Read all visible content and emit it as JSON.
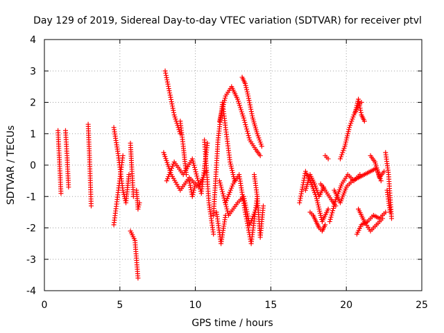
{
  "chart_data": {
    "type": "scatter",
    "title": "Day 129 of 2019, Sidereal Day-to-day VTEC variation (SDTVAR) for receiver ptvl",
    "xlabel": "GPS time / hours",
    "ylabel": "SDTVAR / TECUs",
    "xlim": [
      0,
      25
    ],
    "ylim": [
      -4,
      4
    ],
    "xticks": [
      0,
      5,
      10,
      15,
      20,
      25
    ],
    "yticks": [
      -4,
      -3,
      -2,
      -1,
      0,
      1,
      2,
      3,
      4
    ],
    "grid": true,
    "marker": "+",
    "color": "#ff0000",
    "series": [
      {
        "name": "SDTVAR",
        "segments": [
          {
            "t": [
              0.9,
              1.0,
              1.1
            ],
            "v": [
              1.1,
              0.1,
              -0.9
            ]
          },
          {
            "t": [
              1.4,
              1.5,
              1.6
            ],
            "v": [
              1.1,
              0.3,
              -0.7
            ]
          },
          {
            "t": [
              2.9,
              3.0,
              3.1
            ],
            "v": [
              1.3,
              0.1,
              -1.3
            ]
          },
          {
            "t": [
              4.6,
              4.9,
              5.2,
              5.4,
              5.6
            ],
            "v": [
              1.2,
              0.3,
              -0.8,
              -1.2,
              -0.3
            ]
          },
          {
            "t": [
              4.6,
              4.9,
              5.2
            ],
            "v": [
              -1.9,
              -0.8,
              0.3
            ]
          },
          {
            "t": [
              5.7,
              5.8,
              5.9
            ],
            "v": [
              0.7,
              -0.2,
              -1.0
            ]
          },
          {
            "t": [
              5.7,
              6.0,
              6.2
            ],
            "v": [
              -2.1,
              -2.4,
              -3.6
            ]
          },
          {
            "t": [
              6.1,
              6.2,
              6.3
            ],
            "v": [
              -0.8,
              -1.4,
              -1.2
            ]
          },
          {
            "t": [
              8.0,
              8.3,
              8.6,
              9.0
            ],
            "v": [
              3.0,
              2.3,
              1.6,
              1.0
            ]
          },
          {
            "t": [
              9.0,
              9.2,
              9.4
            ],
            "v": [
              1.4,
              0.6,
              -0.3
            ]
          },
          {
            "t": [
              7.9,
              8.4,
              9.0,
              9.6,
              10.2,
              10.7
            ],
            "v": [
              0.4,
              -0.3,
              -0.8,
              -0.4,
              -0.7,
              -0.2
            ]
          },
          {
            "t": [
              8.1,
              8.6,
              9.2,
              9.8,
              10.4,
              10.8
            ],
            "v": [
              -0.5,
              0.1,
              -0.3,
              0.2,
              -0.9,
              0.7
            ]
          },
          {
            "t": [
              9.6,
              9.8,
              10.0
            ],
            "v": [
              -0.5,
              -1.0,
              -0.6
            ]
          },
          {
            "t": [
              10.6,
              10.9,
              11.2
            ],
            "v": [
              0.8,
              -1.2,
              -2.2
            ]
          },
          {
            "t": [
              11.2,
              11.5,
              11.8,
              12.0,
              12.3,
              12.6
            ],
            "v": [
              -1.6,
              0.8,
              2.0,
              1.2,
              0.1,
              -0.5
            ]
          },
          {
            "t": [
              11.4,
              11.7,
              12.0
            ],
            "v": [
              -1.5,
              -2.5,
              -1.6
            ]
          },
          {
            "t": [
              11.6,
              12.0,
              12.4,
              12.8,
              13.2,
              13.6,
              14.0,
              14.3
            ],
            "v": [
              1.4,
              2.2,
              2.5,
              2.1,
              1.5,
              0.8,
              0.5,
              0.3
            ]
          },
          {
            "t": [
              11.6,
              12.2,
              12.8,
              13.2,
              13.6,
              14.1
            ],
            "v": [
              -0.5,
              -1.6,
              -1.2,
              -1.0,
              -1.9,
              -1.3
            ]
          },
          {
            "t": [
              12.0,
              12.5,
              12.9,
              13.3,
              13.7,
              14.1
            ],
            "v": [
              -1.2,
              -0.6,
              -0.3,
              -1.5,
              -2.5,
              -1.0
            ]
          },
          {
            "t": [
              13.1,
              13.3,
              13.5,
              13.8,
              14.1,
              14.4
            ],
            "v": [
              2.8,
              2.6,
              2.2,
              1.5,
              1.0,
              0.6
            ]
          },
          {
            "t": [
              13.9,
              14.1,
              14.3,
              14.5
            ],
            "v": [
              -0.3,
              -1.0,
              -2.3,
              -1.3
            ]
          },
          {
            "t": [
              16.9,
              17.1,
              17.3,
              17.6,
              18.0,
              18.4,
              18.8
            ],
            "v": [
              -1.2,
              -0.7,
              -0.2,
              -0.5,
              -1.0,
              -1.8,
              -1.4
            ]
          },
          {
            "t": [
              17.3,
              17.6,
              17.9,
              18.2,
              18.5
            ],
            "v": [
              -0.8,
              -0.3,
              -0.6,
              -1.0,
              -0.7
            ]
          },
          {
            "t": [
              17.6,
              17.8,
              18.0,
              18.2,
              18.4,
              18.6
            ],
            "v": [
              -1.5,
              -1.6,
              -1.8,
              -2.0,
              -2.1,
              -1.9
            ]
          },
          {
            "t": [
              18.3,
              18.6,
              19.0,
              19.3
            ],
            "v": [
              -0.6,
              -0.8,
              -1.1,
              -1.3
            ]
          },
          {
            "t": [
              18.6,
              18.8
            ],
            "v": [
              0.3,
              0.2
            ]
          },
          {
            "t": [
              18.9,
              19.3,
              19.7,
              20.1,
              20.5,
              20.9
            ],
            "v": [
              -1.8,
              -1.1,
              -0.6,
              -0.3,
              -0.5,
              -0.3
            ]
          },
          {
            "t": [
              19.2,
              19.6,
              20.0,
              20.4,
              20.8,
              21.2,
              21.6,
              22.0,
              22.3
            ],
            "v": [
              -0.8,
              -1.2,
              -0.7,
              -0.5,
              -0.4,
              -0.3,
              -0.2,
              -0.1,
              -0.5
            ]
          },
          {
            "t": [
              19.6,
              19.9,
              20.2,
              20.5,
              20.8,
              21.0
            ],
            "v": [
              0.2,
              0.6,
              1.2,
              1.6,
              1.9,
              2.0
            ]
          },
          {
            "t": [
              20.6,
              20.8,
              21.0,
              21.2
            ],
            "v": [
              1.7,
              2.1,
              1.6,
              1.4
            ]
          },
          {
            "t": [
              20.7,
              21.0,
              21.4,
              21.8,
              22.2,
              22.6
            ],
            "v": [
              -2.2,
              -1.9,
              -1.8,
              -1.6,
              -1.7,
              -1.5
            ]
          },
          {
            "t": [
              20.8,
              21.2,
              21.6,
              22.0,
              22.4
            ],
            "v": [
              -1.4,
              -1.8,
              -2.1,
              -1.9,
              -1.7
            ]
          },
          {
            "t": [
              21.6,
              21.9,
              22.2,
              22.5
            ],
            "v": [
              0.3,
              0.1,
              -0.4,
              -0.2
            ]
          },
          {
            "t": [
              22.6,
              22.8,
              23.0
            ],
            "v": [
              0.4,
              -0.3,
              -1.7
            ]
          },
          {
            "t": [
              22.7,
              22.9
            ],
            "v": [
              -0.8,
              -1.5
            ]
          }
        ]
      }
    ]
  }
}
